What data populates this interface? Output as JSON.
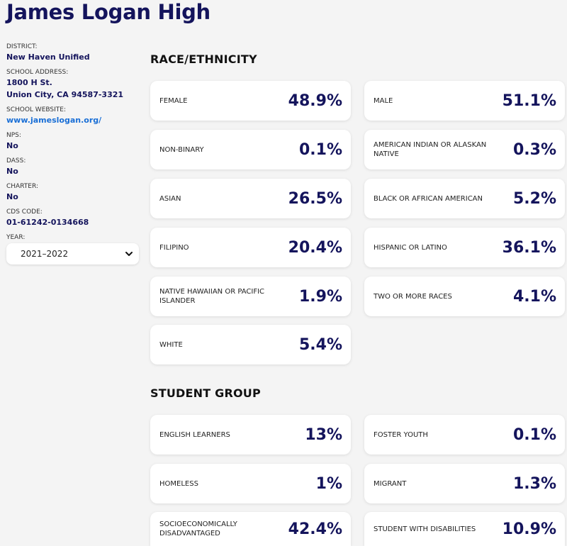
{
  "school": {
    "name": "James Logan High"
  },
  "sidebar": {
    "district_label": "DISTRICT:",
    "district": "New Haven Unified",
    "address_label": "SCHOOL ADDRESS:",
    "address_line1": "1800 H St.",
    "address_line2": "Union City, CA 94587-3321",
    "website_label": "SCHOOL WEBSITE:",
    "website": "www.jameslogan.org/",
    "nps_label": "NPS:",
    "nps": "No",
    "dass_label": "DASS:",
    "dass": "No",
    "charter_label": "CHARTER:",
    "charter": "No",
    "cds_label": "CDS CODE:",
    "cds": "01-61242-0134668",
    "year_label": "YEAR:",
    "year": "2021–2022"
  },
  "race": {
    "title": "RACE/ETHNICITY",
    "cards": [
      {
        "label": "FEMALE",
        "value": "48.9%"
      },
      {
        "label": "MALE",
        "value": "51.1%"
      },
      {
        "label": "NON-BINARY",
        "value": "0.1%"
      },
      {
        "label": "AMERICAN INDIAN OR ALASKAN NATIVE",
        "value": "0.3%"
      },
      {
        "label": "ASIAN",
        "value": "26.5%"
      },
      {
        "label": "BLACK OR AFRICAN AMERICAN",
        "value": "5.2%"
      },
      {
        "label": "FILIPINO",
        "value": "20.4%"
      },
      {
        "label": "HISPANIC OR LATINO",
        "value": "36.1%"
      },
      {
        "label": "NATIVE HAWAIIAN OR PACIFIC ISLANDER",
        "value": "1.9%"
      },
      {
        "label": "TWO OR MORE RACES",
        "value": "4.1%"
      },
      {
        "label": "WHITE",
        "value": "5.4%"
      }
    ]
  },
  "group": {
    "title": "STUDENT GROUP",
    "cards": [
      {
        "label": "ENGLISH LEARNERS",
        "value": "13%"
      },
      {
        "label": "FOSTER YOUTH",
        "value": "0.1%"
      },
      {
        "label": "HOMELESS",
        "value": "1%"
      },
      {
        "label": "MIGRANT",
        "value": "1.3%"
      },
      {
        "label": "SOCIOECONOMICALLY DISADVANTAGED",
        "value": "42.4%"
      },
      {
        "label": "STUDENT WITH DISABILITIES",
        "value": "10.9%"
      }
    ]
  }
}
